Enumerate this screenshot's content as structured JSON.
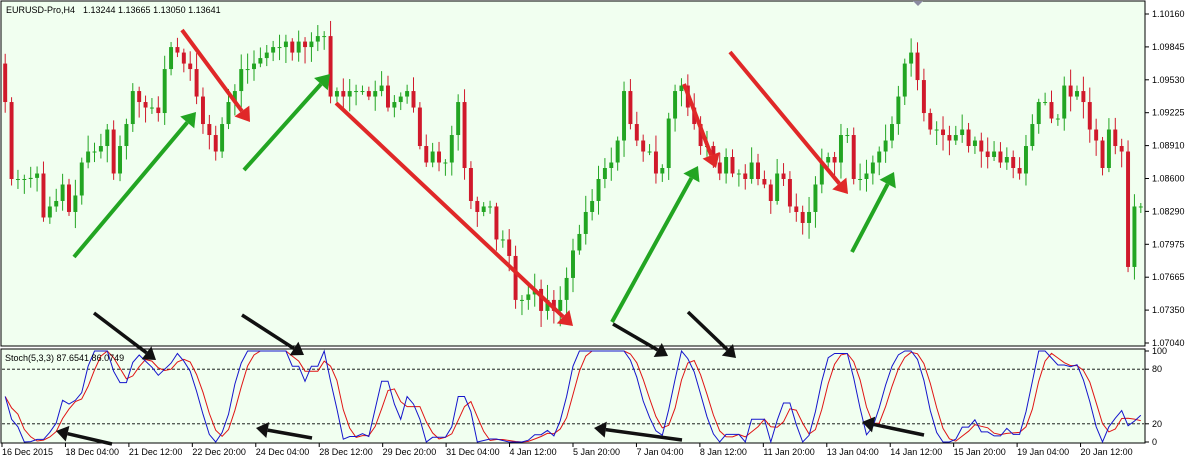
{
  "header": {
    "symbol": "EURUSD-Pro,H4",
    "ohlc": "1.13244 1.13665 1.13050 1.13641"
  },
  "indicator": {
    "label": "Stoch(5,3,3) 87.6541 86.0749"
  },
  "colors": {
    "background": "#f1fff0",
    "bull": "#22a522",
    "bear": "#d0192b",
    "arrow_up": "#22a522",
    "arrow_down": "#e02828",
    "arrow_black": "#111111",
    "stoch_main": "#1515cc",
    "stoch_signal": "#e01515"
  },
  "chart_data": {
    "type": "candlestick",
    "price_axis": {
      "ylim": [
        1.0704,
        1.1016
      ],
      "ticks": [
        "1.10160",
        "1.09845",
        "1.09530",
        "1.09225",
        "1.08910",
        "1.08600",
        "1.08290",
        "1.07975",
        "1.07665",
        "1.07350",
        "1.07040"
      ]
    },
    "stoch_axis": {
      "ylim": [
        0,
        100
      ],
      "ticks": [
        "100",
        "80",
        "20",
        "0"
      ],
      "levels": [
        80,
        20
      ]
    },
    "x_ticks": [
      "16 Dec 2015",
      "18 Dec 04:00",
      "21 Dec 12:00",
      "22 Dec 20:00",
      "24 Dec 04:00",
      "28 Dec 12:00",
      "29 Dec 20:00",
      "31 Dec 04:00",
      "4 Jan 12:00",
      "5 Jan 20:00",
      "7 Jan 04:00",
      "8 Jan 12:00",
      "11 Jan 20:00",
      "13 Jan 04:00",
      "14 Jan 12:00",
      "15 Jan 20:00",
      "19 Jan 04:00",
      "20 Jan 12:00"
    ],
    "close": [
      1.0925,
      1.0855,
      1.0855,
      1.0855,
      1.0856,
      1.086,
      1.082,
      1.083,
      1.0835,
      1.085,
      1.0825,
      1.084,
      1.087,
      1.088,
      1.088,
      1.0885,
      1.09,
      1.086,
      1.0885,
      1.0905,
      1.0935,
      1.0925,
      1.092,
      1.092,
      1.0915,
      1.0955,
      1.0975,
      1.097,
      1.096,
      1.0955,
      1.093,
      1.0905,
      1.0895,
      1.088,
      1.0905,
      1.0925,
      1.0935,
      1.0955,
      1.0955,
      1.096,
      1.0965,
      1.097,
      1.0975,
      1.0975,
      1.098,
      1.097,
      1.098,
      1.0975,
      1.098,
      1.0985,
      1.0985,
      1.093,
      1.0935,
      1.093,
      1.0935,
      1.0935,
      1.0935,
      1.093,
      1.0935,
      1.094,
      1.092,
      1.0925,
      1.093,
      1.0935,
      1.092,
      1.0885,
      1.087,
      1.088,
      1.087,
      1.087,
      1.0895,
      1.0925,
      1.0865,
      1.0835,
      1.0825,
      1.083,
      1.083,
      1.08,
      1.08,
      1.0785,
      1.0745,
      1.0745,
      1.075,
      1.0755,
      1.0735,
      1.0745,
      1.0735,
      1.0745,
      1.0765,
      1.079,
      1.0805,
      1.0825,
      1.0835,
      1.0855,
      1.0865,
      1.087,
      1.089,
      1.0935,
      1.0905,
      1.089,
      1.088,
      1.088,
      1.086,
      1.0865,
      1.091,
      1.0935,
      1.094,
      1.092,
      1.0905,
      1.0885,
      1.0885,
      1.087,
      1.086,
      1.0875,
      1.086,
      1.086,
      1.0855,
      1.087,
      1.0855,
      1.085,
      1.0835,
      1.086,
      1.0855,
      1.083,
      1.0825,
      1.0815,
      1.0825,
      1.085,
      1.087,
      1.0875,
      1.087,
      1.0895,
      1.0895,
      1.0855,
      1.0855,
      1.086,
      1.087,
      1.088,
      1.089,
      1.0905,
      1.093,
      1.096,
      1.097,
      1.0945,
      1.0915,
      1.09,
      1.09,
      1.0895,
      1.089,
      1.0895,
      1.09,
      1.0885,
      1.089,
      1.088,
      1.0875,
      1.088,
      1.087,
      1.0875,
      1.0865,
      1.086,
      1.0885,
      1.0905,
      1.0925,
      1.0925,
      1.091,
      1.091,
      1.094,
      1.093,
      1.0935,
      1.0925,
      1.09,
      1.089,
      1.0865,
      1.09,
      1.0885,
      1.088,
      1.0775,
      1.083,
      1.083
    ]
  }
}
